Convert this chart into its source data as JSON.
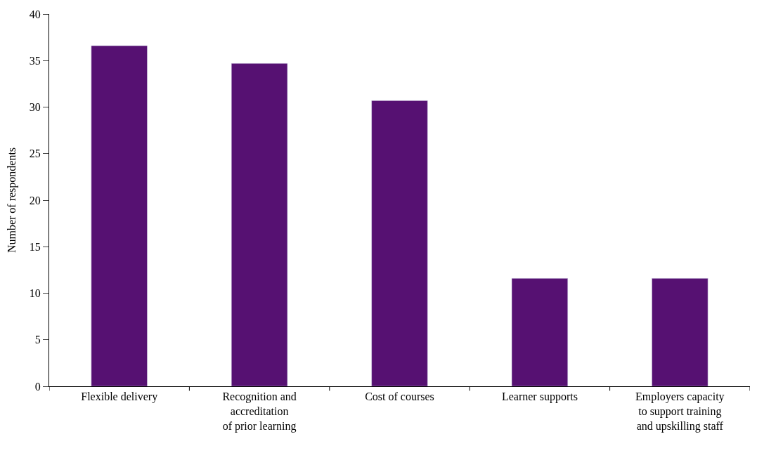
{
  "chart_data": {
    "type": "bar",
    "ylabel": "Number of respondents",
    "categories": [
      "Flexible delivery",
      "Recognition and\naccreditation\nof prior learning",
      "Cost of courses",
      "Learner supports",
      "Employers capacity\nto support training\nand upskilling staff"
    ],
    "values": [
      36.6,
      34.7,
      30.7,
      11.6,
      11.6
    ],
    "color": "#561172",
    "ylim": [
      0,
      40
    ],
    "yticks": [
      0,
      5,
      10,
      15,
      20,
      25,
      30,
      35,
      40
    ]
  }
}
